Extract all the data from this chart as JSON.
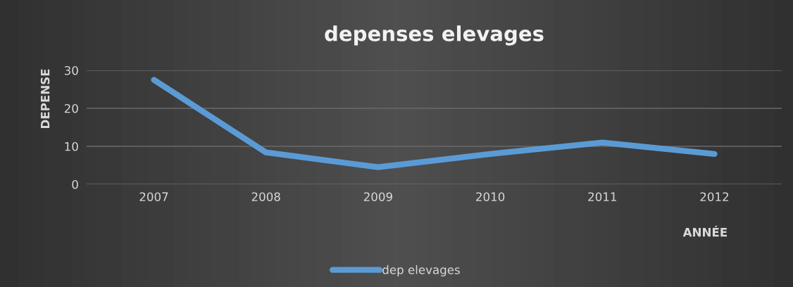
{
  "chart_data": {
    "type": "line",
    "title": "depenses elevages",
    "xlabel": "ANNÉE",
    "ylabel": "DEPENSE",
    "categories": [
      "2007",
      "2008",
      "2009",
      "2010",
      "2011",
      "2012"
    ],
    "series": [
      {
        "name": "dep elevages",
        "color": "#5b9bd5",
        "values": [
          27.5,
          8.4,
          4.5,
          8,
          11,
          8
        ]
      }
    ],
    "ylim": [
      0,
      30
    ],
    "yticks": [
      0,
      10,
      20,
      30
    ],
    "grid": "y",
    "legend": "bottom",
    "marker": "none",
    "line_style": "solid"
  }
}
